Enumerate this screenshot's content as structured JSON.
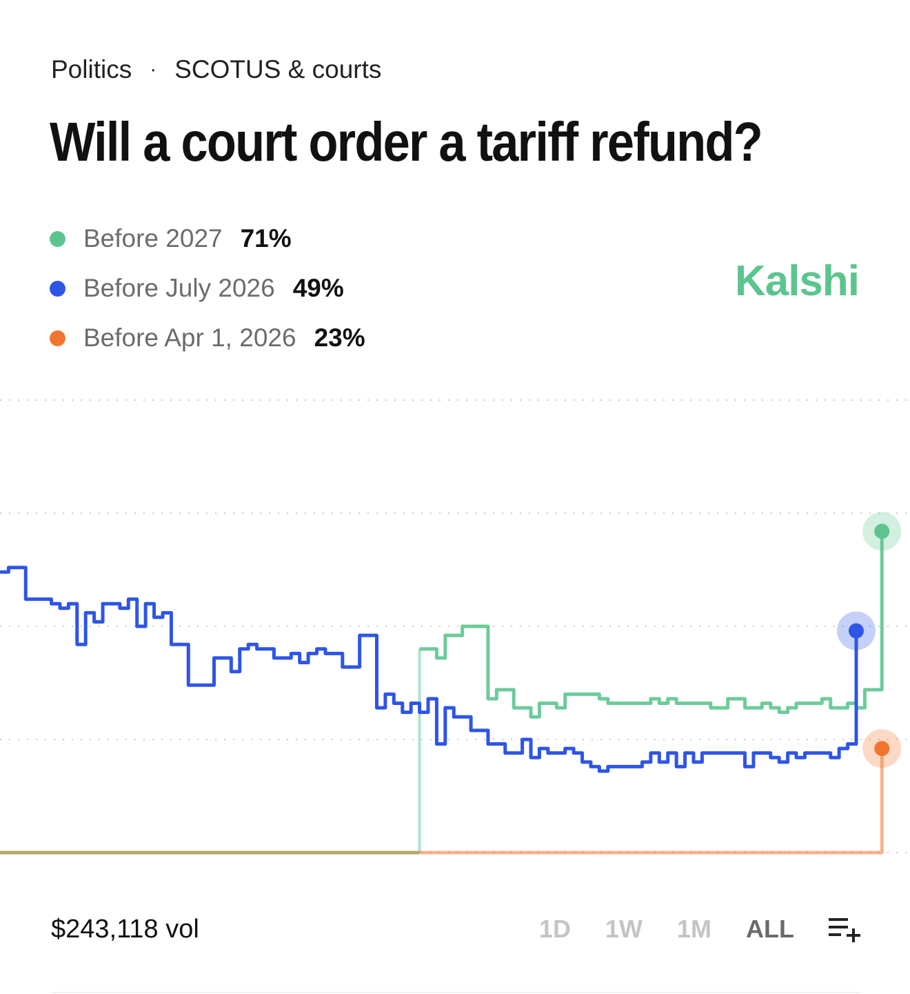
{
  "breadcrumb": {
    "category": "Politics",
    "separator": "·",
    "subcategory": "SCOTUS & courts"
  },
  "title": "Will a court order a tariff refund?",
  "brand": "Kalshi",
  "colors": {
    "before_2027": "#5cc58f",
    "before_july_2026": "#2e55e6",
    "before_apr_2026": "#f07630",
    "brand": "#5cc58f",
    "grid": "#c9c9c9"
  },
  "outcomes": [
    {
      "label": "Before 2027",
      "value": "71%",
      "color": "#5cc58f"
    },
    {
      "label": "Before July 2026",
      "value": "49%",
      "color": "#2e55e6"
    },
    {
      "label": "Before Apr 1, 2026",
      "value": "23%",
      "color": "#f07630"
    }
  ],
  "footer": {
    "volume": "$243,118 vol",
    "ranges": [
      "1D",
      "1W",
      "1M",
      "ALL"
    ],
    "active_range": "ALL",
    "add_icon": "playlist-add-icon"
  },
  "chart_data": {
    "type": "line",
    "ylim": [
      0,
      100
    ],
    "grid": true,
    "x_steps": 100,
    "series": [
      {
        "name": "Before July 2026",
        "color": "#2e55e6",
        "start_step": 0,
        "values": [
          62,
          63,
          63,
          56,
          56,
          56,
          55,
          54,
          55,
          46,
          53,
          51,
          55,
          55,
          54,
          56,
          50,
          55,
          52,
          53,
          46,
          46,
          37,
          37,
          37,
          43,
          43,
          40,
          45,
          46,
          45,
          45,
          43,
          43,
          44,
          42,
          44,
          45,
          44,
          44,
          41,
          41,
          48,
          48,
          32,
          35,
          33,
          31,
          33,
          31,
          34,
          24,
          32,
          30,
          30,
          27,
          27,
          24,
          24,
          22,
          22,
          25,
          21,
          23,
          22,
          22,
          23,
          22,
          20,
          19,
          18,
          19,
          19,
          19,
          19,
          20,
          22,
          20,
          22,
          19,
          22,
          20,
          22,
          22,
          22,
          22,
          22,
          19,
          22,
          22,
          21,
          20,
          22,
          21,
          22,
          22,
          22,
          21,
          23,
          24,
          49
        ]
      },
      {
        "name": "Before 2027",
        "color": "#5cc58f",
        "start_step": 49,
        "values": [
          45,
          45,
          43,
          48,
          48,
          50,
          50,
          50,
          34,
          36,
          36,
          32,
          32,
          30,
          33,
          33,
          32,
          35,
          35,
          35,
          35,
          34,
          33,
          33,
          33,
          33,
          33,
          34,
          33,
          34,
          33,
          33,
          33,
          33,
          32,
          32,
          34,
          34,
          32,
          32,
          33,
          32,
          31,
          32,
          33,
          33,
          33,
          34,
          32,
          32,
          33,
          32,
          36,
          36,
          71
        ]
      },
      {
        "name": "Before Apr 1, 2026",
        "color": "#f07630",
        "start_step": 49,
        "values": [
          0,
          0,
          0,
          0,
          0,
          0,
          0,
          0,
          0,
          0,
          0,
          0,
          0,
          0,
          0,
          0,
          0,
          0,
          0,
          0,
          0,
          0,
          0,
          0,
          0,
          0,
          0,
          0,
          0,
          0,
          0,
          0,
          0,
          0,
          0,
          0,
          0,
          0,
          0,
          0,
          0,
          0,
          0,
          0,
          0,
          0,
          0,
          0,
          0,
          0,
          0,
          0,
          0,
          0,
          23
        ]
      }
    ]
  }
}
